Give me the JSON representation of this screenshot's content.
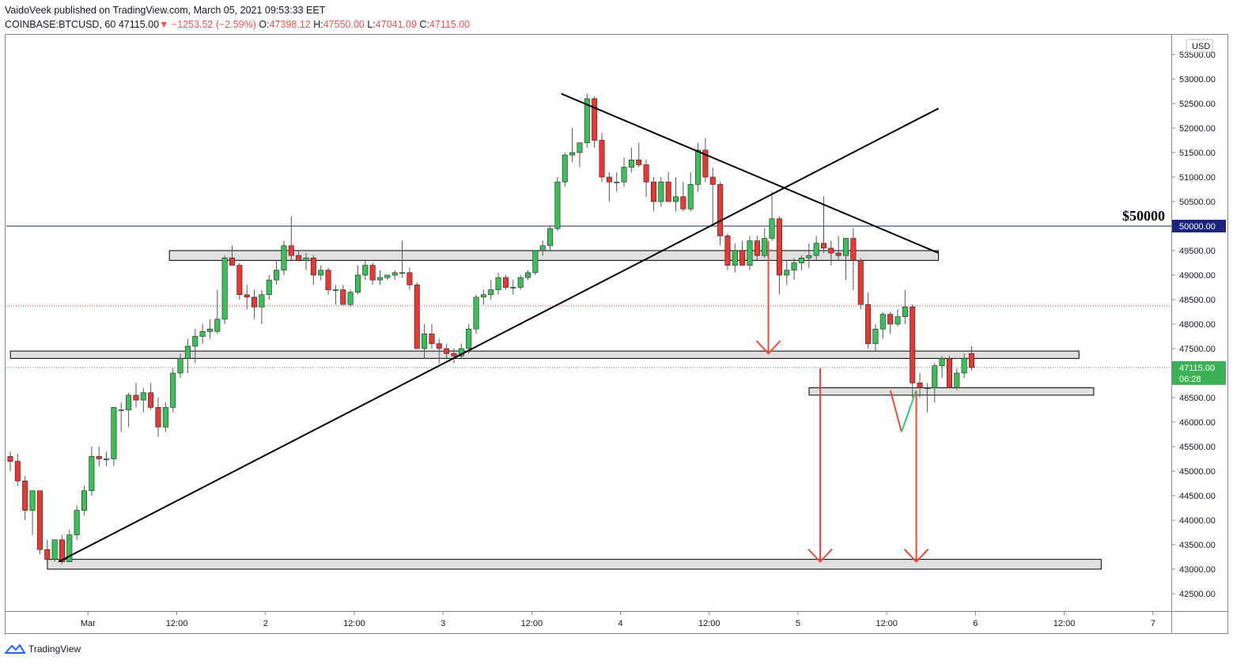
{
  "header": {
    "line1": "VaidoVeek published on TradingView.com, March 05, 2021 09:53:33 EET",
    "symbol": "COINBASE:BTCUSD, 60",
    "price": "47115.00",
    "change_arrow": "▼",
    "change": "−1253.52 (−2.59%)",
    "open_label": "O:",
    "open": "47398.12",
    "high_label": "H:",
    "high": "47550.00",
    "low_label": "L:",
    "low": "47041.09",
    "close_label": "C:",
    "close": "47115.00"
  },
  "footer": {
    "brand": "TradingView",
    "logo_icon": "tradingview-logo-icon"
  },
  "colors": {
    "up": "#26a69a",
    "up_fill": "#3cbf58",
    "down": "#e53935",
    "line": "#000000",
    "level": "#1a237e",
    "zone_fill": "#e0e0e0"
  },
  "chart_data": {
    "type": "candlestick",
    "currency": "USD",
    "symbol": "COINBASE:BTCUSD",
    "interval": "60",
    "ylim": [
      42200,
      53800
    ],
    "y_ticks": [
      "53500.00",
      "53000.00",
      "52500.00",
      "52000.00",
      "51500.00",
      "51000.00",
      "50500.00",
      "50000.00",
      "49500.00",
      "49000.00",
      "48500.00",
      "48000.00",
      "47500.00",
      "47000.00",
      "46500.00",
      "46000.00",
      "45500.00",
      "45000.00",
      "44500.00",
      "44000.00",
      "43500.00",
      "43000.00",
      "42500.00"
    ],
    "y_tick_values": [
      53500,
      53000,
      52500,
      52000,
      51500,
      51000,
      50500,
      50000,
      49500,
      49000,
      48500,
      48000,
      47500,
      47000,
      46500,
      46000,
      45500,
      45000,
      44500,
      44000,
      43500,
      43000,
      42500
    ],
    "x_ticks": [
      {
        "label": "Mar",
        "t": 11
      },
      {
        "label": "12:00",
        "t": 23
      },
      {
        "label": "2",
        "t": 35
      },
      {
        "label": "12:00",
        "t": 47
      },
      {
        "label": "3",
        "t": 59
      },
      {
        "label": "12:00",
        "t": 71
      },
      {
        "label": "4",
        "t": 83
      },
      {
        "label": "12:00",
        "t": 95
      },
      {
        "label": "5",
        "t": 107
      },
      {
        "label": "12:00",
        "t": 119
      },
      {
        "label": "6",
        "t": 131
      },
      {
        "label": "12:00",
        "t": 143
      },
      {
        "label": "7",
        "t": 155
      }
    ],
    "t_range": [
      0,
      156
    ],
    "candles": [
      [
        45300,
        45400,
        45000,
        45200
      ],
      [
        45200,
        45350,
        44700,
        44800
      ],
      [
        44800,
        44900,
        44000,
        44200
      ],
      [
        44200,
        44600,
        43700,
        44600
      ],
      [
        44600,
        44600,
        43300,
        43400
      ],
      [
        43400,
        43600,
        43200,
        43200
      ],
      [
        43200,
        43600,
        43150,
        43600
      ],
      [
        43600,
        43700,
        43100,
        43150
      ],
      [
        43150,
        43800,
        43150,
        43700
      ],
      [
        43700,
        44300,
        43600,
        44200
      ],
      [
        44200,
        44700,
        44100,
        44600
      ],
      [
        44600,
        45500,
        44500,
        45300
      ],
      [
        45300,
        45500,
        45100,
        45250
      ],
      [
        45250,
        45400,
        45100,
        45250
      ],
      [
        45250,
        46300,
        45100,
        46300
      ],
      [
        46250,
        46400,
        45800,
        46250
      ],
      [
        46250,
        46600,
        45900,
        46550
      ],
      [
        46550,
        46800,
        46300,
        46450
      ],
      [
        46450,
        46700,
        46200,
        46600
      ],
      [
        46600,
        46800,
        46250,
        46300
      ],
      [
        46300,
        46500,
        45700,
        45900
      ],
      [
        45900,
        46400,
        45800,
        46300
      ],
      [
        46300,
        47100,
        46200,
        47000
      ],
      [
        47000,
        47400,
        46900,
        47300
      ],
      [
        47300,
        47700,
        47000,
        47550
      ],
      [
        47550,
        47900,
        47200,
        47750
      ],
      [
        47750,
        48000,
        47600,
        47850
      ],
      [
        47850,
        48100,
        47700,
        47900
      ],
      [
        47850,
        48700,
        47800,
        48100
      ],
      [
        48100,
        49400,
        48000,
        49350
      ],
      [
        49350,
        49600,
        49200,
        49200
      ],
      [
        49200,
        49250,
        48500,
        48600
      ],
      [
        48600,
        48800,
        48300,
        48550
      ],
      [
        48550,
        48700,
        48100,
        48350
      ],
      [
        48350,
        48700,
        48000,
        48600
      ],
      [
        48600,
        49000,
        48500,
        48900
      ],
      [
        48900,
        49300,
        48800,
        49100
      ],
      [
        49100,
        49700,
        49000,
        49600
      ],
      [
        49600,
        50200,
        49300,
        49400
      ],
      [
        49400,
        49500,
        49300,
        49300
      ],
      [
        49300,
        49450,
        49100,
        49350
      ],
      [
        49350,
        49400,
        48800,
        49000
      ],
      [
        49000,
        49200,
        48900,
        49100
      ],
      [
        49100,
        49150,
        48600,
        48700
      ],
      [
        48700,
        48800,
        48400,
        48700
      ],
      [
        48700,
        48800,
        48400,
        48400
      ],
      [
        48400,
        48700,
        48350,
        48650
      ],
      [
        48650,
        49200,
        48600,
        49000
      ],
      [
        49000,
        49300,
        48900,
        49200
      ],
      [
        49200,
        49250,
        48800,
        48900
      ],
      [
        48900,
        49100,
        48800,
        48950
      ],
      [
        48950,
        49000,
        48900,
        49000
      ],
      [
        49000,
        49100,
        48900,
        49050
      ],
      [
        49050,
        49700,
        48950,
        49050
      ],
      [
        49050,
        49150,
        48700,
        48800
      ],
      [
        48800,
        48850,
        47500,
        47500
      ],
      [
        47500,
        48000,
        47300,
        47800
      ],
      [
        47800,
        48000,
        47500,
        47600
      ],
      [
        47600,
        47700,
        47200,
        47500
      ],
      [
        47500,
        47600,
        47300,
        47400
      ],
      [
        47400,
        47500,
        47200,
        47350
      ],
      [
        47350,
        47600,
        47300,
        47500
      ],
      [
        47500,
        48000,
        47400,
        47900
      ],
      [
        47900,
        48600,
        47800,
        48550
      ],
      [
        48550,
        48700,
        48400,
        48600
      ],
      [
        48600,
        48900,
        48500,
        48700
      ],
      [
        48700,
        49050,
        48600,
        48950
      ],
      [
        48950,
        49000,
        48700,
        48750
      ],
      [
        48750,
        48900,
        48600,
        48750
      ],
      [
        48750,
        49000,
        48700,
        48950
      ],
      [
        48950,
        49100,
        48900,
        49050
      ],
      [
        49050,
        49500,
        49000,
        49500
      ],
      [
        49500,
        49700,
        49400,
        49600
      ],
      [
        49600,
        50000,
        49500,
        49950
      ],
      [
        49950,
        51000,
        49900,
        50900
      ],
      [
        50900,
        51500,
        50800,
        51450
      ],
      [
        51450,
        52000,
        51300,
        51500
      ],
      [
        51500,
        51700,
        51200,
        51700
      ],
      [
        51700,
        52700,
        51600,
        52600
      ],
      [
        52600,
        52650,
        51600,
        51750
      ],
      [
        51750,
        51900,
        50900,
        51000
      ],
      [
        51000,
        51100,
        50500,
        50900
      ],
      [
        50900,
        51100,
        50700,
        50900
      ],
      [
        50900,
        51400,
        50800,
        51200
      ],
      [
        51200,
        51600,
        51100,
        51350
      ],
      [
        51350,
        51700,
        51200,
        51250
      ],
      [
        51250,
        51350,
        50600,
        50900
      ],
      [
        50900,
        51000,
        50300,
        50500
      ],
      [
        50500,
        51000,
        50400,
        50900
      ],
      [
        50900,
        51100,
        50500,
        50500
      ],
      [
        50500,
        51000,
        50300,
        50600
      ],
      [
        50600,
        50900,
        50300,
        50350
      ],
      [
        50350,
        51100,
        50300,
        50850
      ],
      [
        50850,
        51700,
        50700,
        51550
      ],
      [
        51550,
        51800,
        50900,
        51000
      ],
      [
        51000,
        51200,
        50000,
        50850
      ],
      [
        50850,
        50900,
        49600,
        49800
      ],
      [
        49800,
        49850,
        49100,
        49200
      ],
      [
        49200,
        49650,
        49050,
        49500
      ],
      [
        49500,
        49700,
        49250,
        49200
      ],
      [
        49200,
        49800,
        49100,
        49700
      ],
      [
        49700,
        49800,
        49300,
        49400
      ],
      [
        49400,
        49950,
        49350,
        49750
      ],
      [
        49750,
        50700,
        49700,
        50150
      ],
      [
        50150,
        50200,
        48600,
        49000
      ],
      [
        49000,
        49300,
        48800,
        49100
      ],
      [
        49100,
        49350,
        48900,
        49250
      ],
      [
        49250,
        49400,
        49100,
        49350
      ],
      [
        49350,
        49650,
        49150,
        49400
      ],
      [
        49400,
        49800,
        49300,
        49650
      ],
      [
        49650,
        50600,
        49450,
        49550
      ],
      [
        49550,
        49700,
        49200,
        49450
      ],
      [
        49450,
        49800,
        49300,
        49400
      ],
      [
        49400,
        49750,
        48900,
        49750
      ],
      [
        49750,
        49950,
        48700,
        49300
      ],
      [
        49300,
        49350,
        48300,
        48400
      ],
      [
        48400,
        48650,
        47500,
        47600
      ],
      [
        47600,
        48000,
        47450,
        47900
      ],
      [
        47900,
        48250,
        47700,
        48200
      ],
      [
        48200,
        48250,
        47800,
        48000
      ],
      [
        48000,
        48300,
        47950,
        48150
      ],
      [
        48150,
        48700,
        48000,
        48350
      ],
      [
        48350,
        48400,
        46500,
        46800
      ],
      [
        46800,
        47000,
        46500,
        46700
      ],
      [
        46700,
        46800,
        46200,
        46700
      ],
      [
        46700,
        47200,
        46400,
        47150
      ],
      [
        47150,
        47350,
        46900,
        47300
      ],
      [
        47300,
        47350,
        46700,
        46700
      ],
      [
        46700,
        47100,
        46650,
        47000
      ],
      [
        47000,
        47400,
        46900,
        47300
      ],
      [
        47400,
        47550,
        47050,
        47115
      ]
    ],
    "horizontal_level": {
      "value": 50000,
      "label": "$50000",
      "axis_label": "50000.00"
    },
    "zones": [
      {
        "t1": 22,
        "t2": 126,
        "low": 49300,
        "high": 49500
      },
      {
        "t1": 0.5,
        "t2": 145,
        "low": 47300,
        "high": 47450
      },
      {
        "t1": 108.5,
        "t2": 147,
        "low": 46550,
        "high": 46700
      },
      {
        "t1": 5.5,
        "t2": 148,
        "low": 43000,
        "high": 43200
      }
    ],
    "trend_lines": [
      {
        "t1": 7,
        "p1": 43150,
        "t2": 126,
        "p2": 52400
      },
      {
        "t1": 75,
        "p1": 52700,
        "t2": 126,
        "p2": 49450
      }
    ],
    "projection_arrows": [
      {
        "t": 103,
        "from": 49700,
        "to": 47400
      },
      {
        "t": 110,
        "from": 47100,
        "to": 43150
      },
      {
        "t": 123,
        "from": 46650,
        "to": 43150
      }
    ],
    "projection_path": [
      {
        "t": 119.5,
        "p": 46650,
        "c": "down"
      },
      {
        "t": 121,
        "p": 45800,
        "c": "down"
      },
      {
        "t": 123,
        "p": 46650,
        "c": "up"
      }
    ],
    "last_price": {
      "value": 47115,
      "label": "47115.00",
      "countdown": "06:28"
    },
    "prev_close_line": 48370
  }
}
